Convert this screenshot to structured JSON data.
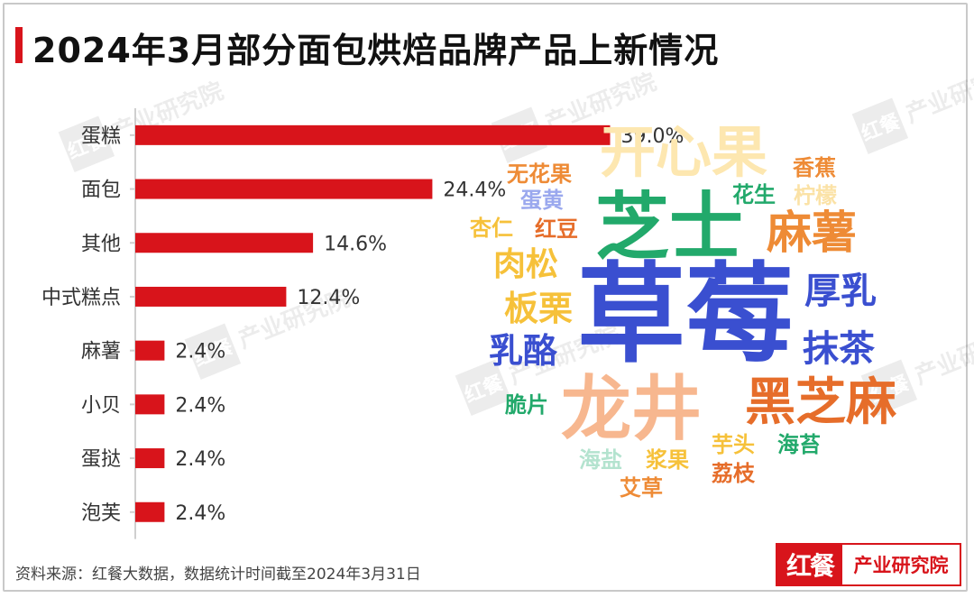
{
  "title": "2024年3月部分面包烘焙品牌产品上新情况",
  "source": "资料来源：红餐大数据，数据统计时间截至2024年3月31日",
  "logo": {
    "mark": "红餐",
    "text": "产业研究院"
  },
  "watermark": {
    "mark": "红餐",
    "text": "产业研究院"
  },
  "colors": {
    "bar": "#d8141b",
    "accent": "#d8141b"
  },
  "chart_data": [
    {
      "type": "bar",
      "orientation": "horizontal",
      "categories": [
        "蛋糕",
        "面包",
        "其他",
        "中式糕点",
        "麻薯",
        "小贝",
        "蛋挞",
        "泡芙"
      ],
      "values": [
        39.0,
        24.4,
        14.6,
        12.4,
        2.4,
        2.4,
        2.4,
        2.4
      ],
      "value_labels": [
        "39.0%",
        "24.4%",
        "14.6%",
        "12.4%",
        "2.4%",
        "2.4%",
        "2.4%",
        "2.4%"
      ],
      "xlim": [
        0,
        40
      ],
      "grid": false
    },
    {
      "type": "wordcloud",
      "words": [
        {
          "text": "草莓",
          "weight": 100,
          "color": "#3a4fd0"
        },
        {
          "text": "芝士",
          "weight": 70,
          "color": "#22a96b"
        },
        {
          "text": "龙井",
          "weight": 68,
          "color": "#f7b78f"
        },
        {
          "text": "开心果",
          "weight": 50,
          "color": "#fde7b0"
        },
        {
          "text": "黑芝麻",
          "weight": 48,
          "color": "#e66d2a"
        },
        {
          "text": "麻薯",
          "weight": 40,
          "color": "#ee8b36"
        },
        {
          "text": "厚乳",
          "weight": 32,
          "color": "#3a4fd0"
        },
        {
          "text": "抹茶",
          "weight": 32,
          "color": "#3a4fd0"
        },
        {
          "text": "板栗",
          "weight": 30,
          "color": "#f6c13a"
        },
        {
          "text": "乳酪",
          "weight": 30,
          "color": "#3a4fd0"
        },
        {
          "text": "肉松",
          "weight": 28,
          "color": "#f6c13a"
        },
        {
          "text": "无花果",
          "weight": 20,
          "color": "#ee8b36"
        },
        {
          "text": "香蕉",
          "weight": 20,
          "color": "#ee8b36"
        },
        {
          "text": "柠檬",
          "weight": 20,
          "color": "#fbe2a6"
        },
        {
          "text": "花生",
          "weight": 20,
          "color": "#22a96b"
        },
        {
          "text": "蛋黄",
          "weight": 20,
          "color": "#9aa8ee"
        },
        {
          "text": "杏仁",
          "weight": 20,
          "color": "#f6c13a"
        },
        {
          "text": "红豆",
          "weight": 20,
          "color": "#e66d2a"
        },
        {
          "text": "脆片",
          "weight": 20,
          "color": "#22a96b"
        },
        {
          "text": "海盐",
          "weight": 20,
          "color": "#b4e3cf"
        },
        {
          "text": "浆果",
          "weight": 20,
          "color": "#f6c13a"
        },
        {
          "text": "芋头",
          "weight": 20,
          "color": "#f6c13a"
        },
        {
          "text": "海苔",
          "weight": 20,
          "color": "#22a96b"
        },
        {
          "text": "荔枝",
          "weight": 20,
          "color": "#e66d2a"
        },
        {
          "text": "艾草",
          "weight": 20,
          "color": "#ee8b36"
        }
      ]
    }
  ]
}
